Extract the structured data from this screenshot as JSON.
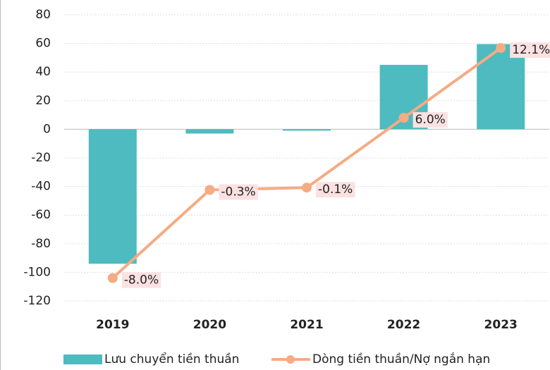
{
  "chart_data": {
    "type": "bar",
    "categories": [
      "2019",
      "2020",
      "2021",
      "2022",
      "2023"
    ],
    "series": [
      {
        "name": "Lưu chuyển tiền thuần",
        "type": "bar",
        "color": "#4dbbbf",
        "values": [
          -94,
          -3,
          -1,
          45,
          59.5
        ]
      },
      {
        "name": "Dòng tiền thuần/Nợ ngắn hạn",
        "type": "line",
        "axis": "y2",
        "color": "#f5ab84",
        "values": [
          -8.0,
          -0.3,
          -0.1,
          6.0,
          12.1
        ],
        "value_labels": [
          "-8.0%",
          "-0.3%",
          "-0.1%",
          "6.0%",
          "12.1%"
        ]
      }
    ],
    "ylim": [
      -120,
      80
    ],
    "yticks": [
      -120,
      -100,
      -80,
      -60,
      -40,
      -20,
      0,
      20,
      40,
      60,
      80
    ],
    "y2lim": [
      -10,
      15
    ],
    "grid": true,
    "legend": "bottom"
  }
}
